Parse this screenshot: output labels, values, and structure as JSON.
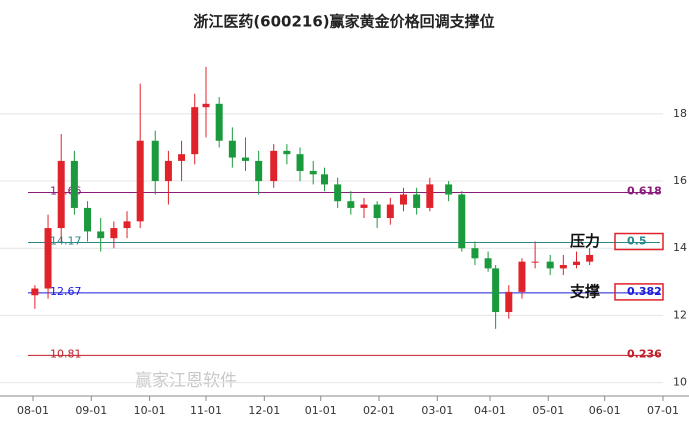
{
  "chart_data": {
    "type": "candlestick",
    "title": "浙江医药(600216)赢家黄金价格回调支撑位",
    "watermark": "赢家江恩软件",
    "ylim": [
      9.6,
      20.2
    ],
    "yticks": [
      10,
      12,
      14,
      16,
      18
    ],
    "xlim": [
      "08-01",
      "07-01"
    ],
    "xticks": [
      "08-01",
      "09-01",
      "10-01",
      "11-01",
      "12-01",
      "01-01",
      "02-01",
      "03-01",
      "04-01",
      "05-01",
      "06-01",
      "07-01"
    ],
    "grid": true,
    "up_color": "#e0222a",
    "down_color": "#1a9a3c",
    "x": [
      "08-02",
      "08-09",
      "08-16",
      "08-23",
      "08-30",
      "09-06",
      "09-13",
      "09-20",
      "09-27",
      "10-04",
      "10-11",
      "10-18",
      "10-25",
      "11-01",
      "11-08",
      "11-15",
      "11-22",
      "11-29",
      "12-06",
      "12-13",
      "12-20",
      "12-27",
      "01-03",
      "01-10",
      "01-17",
      "01-24",
      "01-31",
      "02-07",
      "02-14",
      "02-21",
      "02-28",
      "03-07",
      "03-14",
      "03-21",
      "03-28",
      "04-04",
      "04-11",
      "04-18",
      "04-25",
      "05-02",
      "05-09",
      "05-16",
      "05-23"
    ],
    "open": [
      12.6,
      12.8,
      14.6,
      16.6,
      15.2,
      14.5,
      14.3,
      14.6,
      14.8,
      17.2,
      16.0,
      16.6,
      16.8,
      18.2,
      18.3,
      17.2,
      16.7,
      16.6,
      16.0,
      16.9,
      16.8,
      16.3,
      16.2,
      15.9,
      15.4,
      15.2,
      15.3,
      14.9,
      15.3,
      15.6,
      15.2,
      15.9,
      15.6,
      14.0,
      13.7,
      13.4,
      12.1,
      12.7,
      13.6,
      13.6,
      13.4,
      13.5,
      13.6
    ],
    "high": [
      12.9,
      15.0,
      17.4,
      16.9,
      15.4,
      14.9,
      14.8,
      15.1,
      18.9,
      17.5,
      16.9,
      17.2,
      18.6,
      19.4,
      18.5,
      17.6,
      17.3,
      16.9,
      17.1,
      17.1,
      17.0,
      16.6,
      16.4,
      16.1,
      15.7,
      15.5,
      15.4,
      15.5,
      15.8,
      15.8,
      16.1,
      16.0,
      15.7,
      14.2,
      13.9,
      13.5,
      12.9,
      13.7,
      14.2,
      13.8,
      13.8,
      13.9,
      14.0
    ],
    "low": [
      12.2,
      12.5,
      14.2,
      15.0,
      14.2,
      13.9,
      14.0,
      14.3,
      14.6,
      15.6,
      15.3,
      16.0,
      16.5,
      17.3,
      17.0,
      16.4,
      16.3,
      15.6,
      15.8,
      16.5,
      16.0,
      15.9,
      15.7,
      15.2,
      15.0,
      14.9,
      14.6,
      14.7,
      15.1,
      15.0,
      15.1,
      15.4,
      13.9,
      13.5,
      13.3,
      11.6,
      11.9,
      12.5,
      13.4,
      13.2,
      13.2,
      13.4,
      13.5
    ],
    "close": [
      12.8,
      14.6,
      16.6,
      15.2,
      14.5,
      14.3,
      14.6,
      14.8,
      17.2,
      16.0,
      16.6,
      16.8,
      18.2,
      18.3,
      17.2,
      16.7,
      16.6,
      16.0,
      16.9,
      16.8,
      16.3,
      16.2,
      15.9,
      15.4,
      15.2,
      15.3,
      14.9,
      15.3,
      15.6,
      15.2,
      15.9,
      15.6,
      14.0,
      13.7,
      13.4,
      12.1,
      12.7,
      13.6,
      13.6,
      13.4,
      13.5,
      13.6,
      13.8
    ],
    "levels": [
      {
        "price": 15.66,
        "ratio": 0.618,
        "color": "#8b1a7a"
      },
      {
        "price": 14.17,
        "ratio": 0.5,
        "color": "#2a8a8a",
        "note": "压力"
      },
      {
        "price": 12.67,
        "ratio": 0.382,
        "color": "#1a1adb",
        "note": "支撑"
      },
      {
        "price": 10.81,
        "ratio": 0.236,
        "color": "#c0202a"
      }
    ]
  }
}
